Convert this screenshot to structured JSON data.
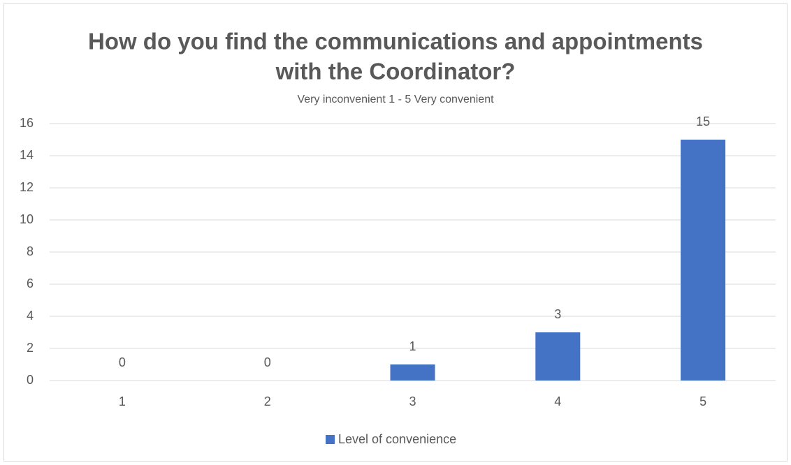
{
  "chart_data": {
    "type": "bar",
    "title": [
      "How do you find the communications and appointments",
      "with the Coordinator?"
    ],
    "subtitle": "Very inconvenient 1 - 5 Very convenient",
    "categories": [
      "1",
      "2",
      "3",
      "4",
      "5"
    ],
    "series": [
      {
        "name": "Level of convenience",
        "color": "#4472c4",
        "values": [
          0,
          0,
          1,
          3,
          15
        ]
      }
    ],
    "ylim": [
      0,
      16
    ],
    "yticks": [
      0,
      2,
      4,
      6,
      8,
      10,
      12,
      14,
      16
    ],
    "grid": true,
    "legend": "bottom",
    "data_labels": true
  }
}
